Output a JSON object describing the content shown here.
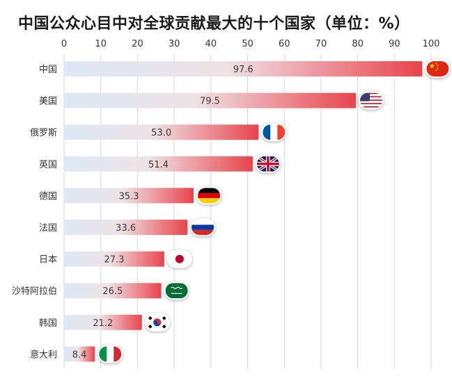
{
  "chart_data": {
    "type": "bar",
    "orientation": "horizontal",
    "title": "中国公众心目中对全球贡献最大的十个国家（单位：%）",
    "categories": [
      "中国",
      "美国",
      "俄罗斯",
      "英国",
      "德国",
      "法国",
      "日本",
      "沙特阿拉伯",
      "韩国",
      "意大利"
    ],
    "values": [
      97.6,
      79.5,
      53.0,
      51.4,
      35.3,
      33.6,
      27.3,
      26.5,
      21.2,
      8.4
    ],
    "value_labels": [
      "97.6",
      "79.5",
      "53.0",
      "51.4",
      "35.3",
      "33.6",
      "27.3",
      "26.5",
      "21.2",
      "8.4"
    ],
    "x_ticks": [
      "0",
      "10",
      "20",
      "30",
      "40",
      "50",
      "60",
      "70",
      "80",
      "90",
      "100"
    ],
    "xlim": [
      0,
      100
    ],
    "axis_position": "top",
    "grid": true,
    "flag_icons": [
      "china-flag-icon",
      "usa-flag-icon",
      "france-flag-icon",
      "uk-flag-icon",
      "germany-flag-icon",
      "russia-flag-icon",
      "japan-flag-icon",
      "saudi-arabia-flag-icon",
      "south-korea-flag-icon",
      "italy-flag-icon"
    ],
    "bar_gradient": [
      "#dde9f6",
      "#e8444c"
    ]
  }
}
